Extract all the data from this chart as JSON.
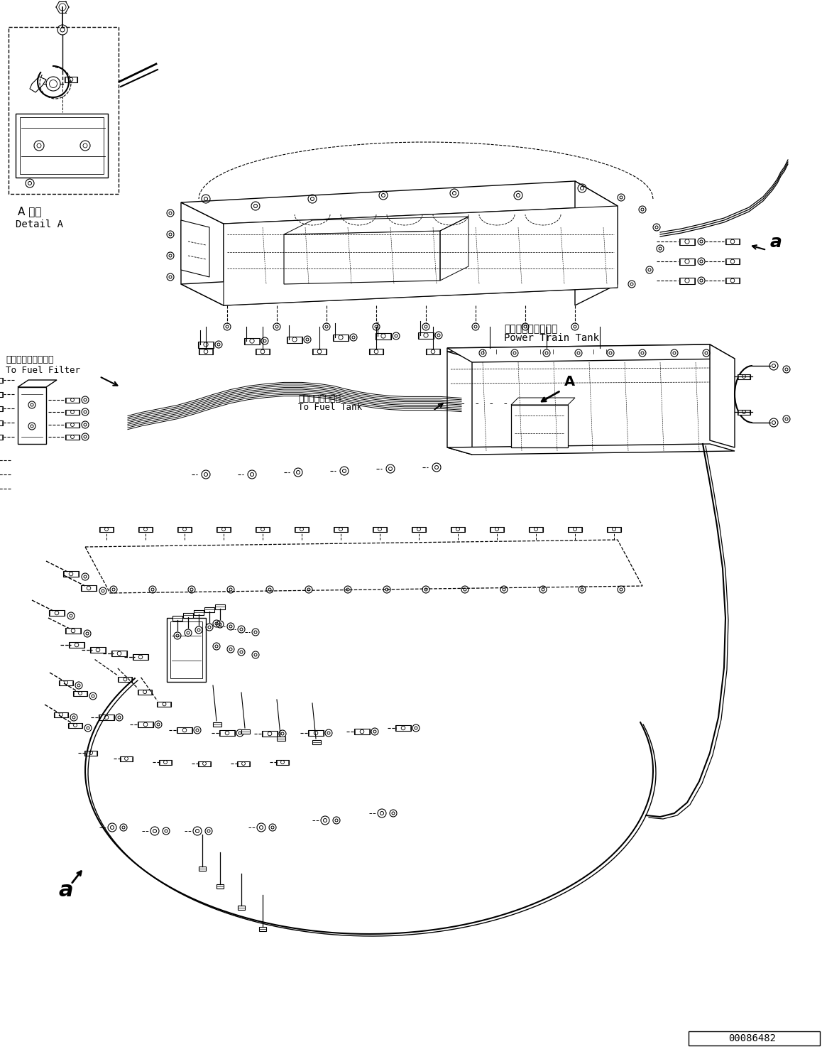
{
  "bg_color": "#ffffff",
  "line_color": "#000000",
  "fig_width": 11.58,
  "fig_height": 14.91,
  "dpi": 100,
  "part_number": "00086482",
  "labels": {
    "detail_a_jp": "A 詳細",
    "detail_a_en": "Detail A",
    "fuel_filter_jp": "フェエルフィルタへ",
    "fuel_filter_en": "To Fuel Filter",
    "fuel_tank_jp": "フェエルタンクへ",
    "fuel_tank_en": "To Fuel Tank",
    "power_train_jp": "パワートレンタンク",
    "power_train_en": "Power Train Tank",
    "label_a": "A",
    "label_a_lower": "a"
  }
}
